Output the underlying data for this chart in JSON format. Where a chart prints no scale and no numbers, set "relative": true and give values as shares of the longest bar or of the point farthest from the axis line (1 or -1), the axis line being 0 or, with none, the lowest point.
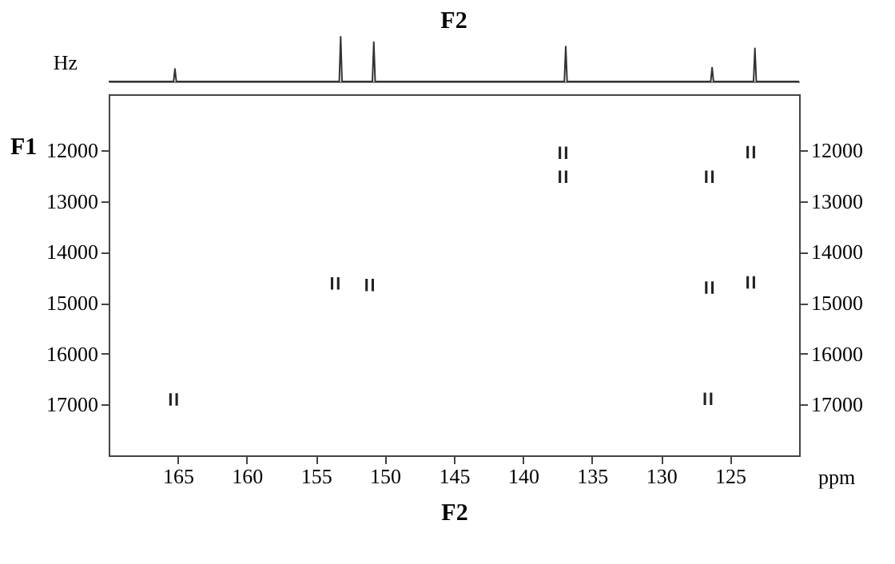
{
  "chart_data": [
    {
      "type": "line",
      "title": "F2",
      "ylabel": "Hz",
      "relative": true,
      "tick_labels": false,
      "xlim": [
        170,
        120
      ],
      "color": "#333333",
      "x": [
        170,
        165.3,
        165.2,
        165.1,
        153.3,
        153.2,
        153.1,
        150.9,
        150.8,
        150.7,
        137.0,
        136.9,
        136.8,
        126.4,
        126.3,
        126.2,
        123.3,
        123.2,
        123.1,
        120
      ],
      "values": [
        0,
        0,
        0.28,
        0,
        0,
        1,
        0,
        0,
        0.88,
        0,
        0,
        0.78,
        0,
        0,
        0.31,
        0,
        0,
        0.74,
        0,
        0
      ]
    },
    {
      "type": "scatter",
      "xlabel": "F2",
      "ylabel": "F1",
      "annotations": [
        "ppm"
      ],
      "color": "#222222",
      "xlim": [
        170,
        120
      ],
      "xticks": [
        165,
        160,
        155,
        150,
        145,
        140,
        135,
        130,
        125
      ],
      "ylim": [
        18000,
        10900
      ],
      "yticks": [
        12000,
        13000,
        14000,
        15000,
        16000,
        17000
      ],
      "y2lim": [
        18000,
        10900
      ],
      "y2ticks": [
        12000,
        13000,
        14000,
        15000,
        16000,
        17000
      ],
      "x": [
        165.3,
        153.6,
        151.1,
        137.1,
        137.1,
        126.5,
        126.5,
        126.6,
        123.5,
        123.5
      ],
      "values": [
        16900,
        14620,
        14650,
        12050,
        12520,
        12520,
        14700,
        16890,
        12040,
        14600
      ]
    }
  ]
}
